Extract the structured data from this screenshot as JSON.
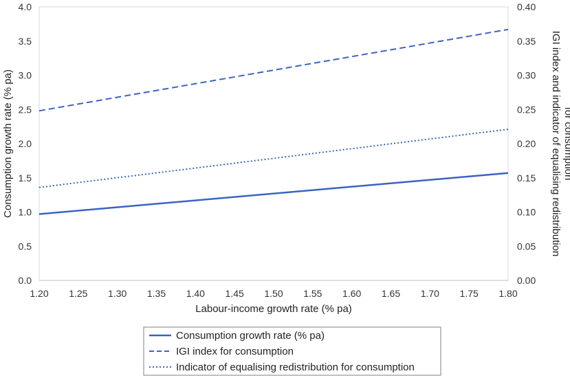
{
  "chart_data": {
    "type": "line",
    "xlabel": "Labour-income growth rate (% pa)",
    "ylabel_left": "Consumption growth rate (% pa)",
    "ylabel_right_line1": "IGI index and indicator of equalising redistribution",
    "ylabel_right_line2": "for consumption",
    "xlim": [
      1.2,
      1.8
    ],
    "ylim_left": [
      0,
      4
    ],
    "ylim_right": [
      0,
      0.4
    ],
    "grid": false,
    "legend_position": "bottom",
    "x_ticks": [
      "1.20",
      "1.25",
      "1.30",
      "1.35",
      "1.40",
      "1.45",
      "1.50",
      "1.55",
      "1.60",
      "1.65",
      "1.70",
      "1.75",
      "1.80"
    ],
    "left_ticks": [
      "0.0",
      "0.5",
      "1.0",
      "1.5",
      "2.0",
      "2.5",
      "3.0",
      "3.5",
      "4.0"
    ],
    "right_ticks": [
      "0.00",
      "0.05",
      "0.10",
      "0.15",
      "0.20",
      "0.25",
      "0.30",
      "0.35",
      "0.40"
    ],
    "series": [
      {
        "name": "Consumption growth rate (% pa)",
        "axis": "left",
        "style": "solid",
        "color": "#3a63c2",
        "x": [
          1.2,
          1.8
        ],
        "y": [
          0.97,
          1.57
        ]
      },
      {
        "name": "IGI index for consumption",
        "axis": "right",
        "style": "dashed",
        "color": "#3a63c2",
        "x": [
          1.2,
          1.8
        ],
        "y": [
          0.248,
          0.367
        ]
      },
      {
        "name": "Indicator of equalising redistribution for consumption",
        "axis": "right",
        "style": "dotted",
        "color": "#3a63c2",
        "x": [
          1.2,
          1.8
        ],
        "y": [
          0.136,
          0.221
        ]
      }
    ]
  }
}
